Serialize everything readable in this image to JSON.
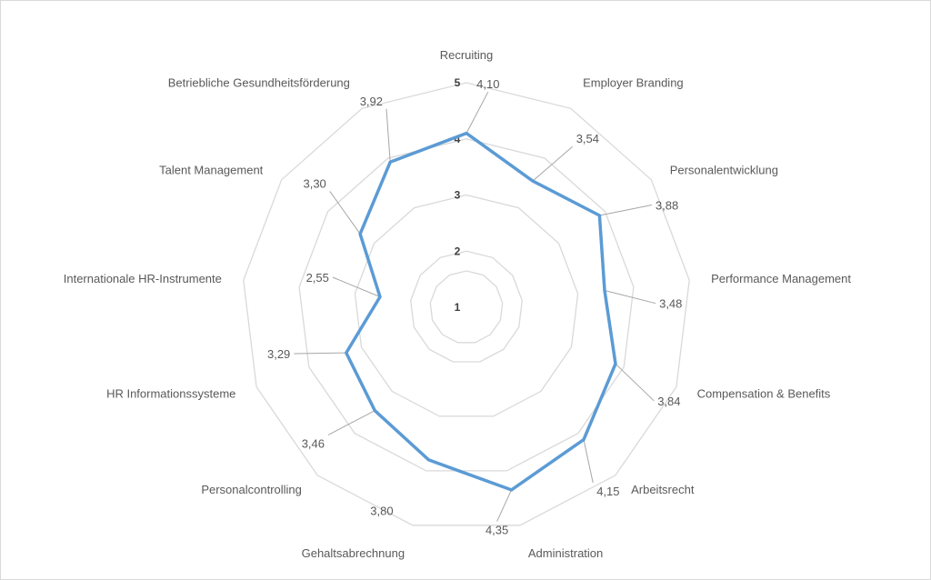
{
  "chart_data": {
    "type": "radar",
    "categories": [
      "Recruiting",
      "Employer Branding",
      "Personalentwicklung",
      "Performance Management",
      "Compensation & Benefits",
      "Arbeitsrecht",
      "Administration",
      "Gehaltsabrechnung",
      "Personalcontrolling",
      "HR Informationssysteme",
      "Internationale HR-Instrumente",
      "Talent Management",
      "Betriebliche Gesundheitsförderung"
    ],
    "series": [
      {
        "values": [
          4.1,
          3.54,
          3.88,
          3.48,
          3.84,
          4.15,
          4.35,
          3.8,
          3.46,
          3.29,
          2.55,
          3.3,
          3.92
        ],
        "value_labels": [
          "4,10",
          "3,54",
          "3,88",
          "3,48",
          "3,84",
          "4,15",
          "4,35",
          "3,80",
          "3,46",
          "3,29",
          "2,55",
          "3,30",
          "3,92"
        ],
        "color": "#5b9bd5"
      }
    ],
    "axis": {
      "ticks": [
        1,
        2,
        3,
        4,
        5
      ],
      "tick_labels": [
        "1",
        "2",
        "3",
        "4",
        "5"
      ],
      "range": [
        1,
        5
      ]
    },
    "grid": true,
    "grid_color": "#d9d9d9",
    "leader_line_color": "#a6a6a6",
    "label_color": "#595959"
  }
}
